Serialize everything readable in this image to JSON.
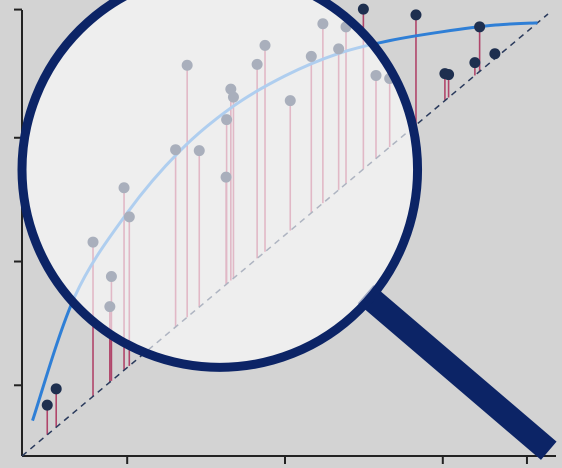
{
  "chart_data": {
    "type": "scatter",
    "title": "",
    "xlabel": "",
    "ylabel": "",
    "xlim": [
      0,
      100
    ],
    "ylim": [
      0,
      100
    ],
    "xticks": [
      20,
      50,
      80,
      96
    ],
    "yticks": [
      16,
      44,
      72,
      101
    ],
    "grid": false,
    "legend": "none",
    "colors": {
      "background": "#d3d3d3",
      "axis": "#222222",
      "point": "#1e2f4f",
      "residual": "#b0456a",
      "fit_curve": "#2f7fd6",
      "diagonal": "#2a3a5c",
      "magnifier": "#0c2466",
      "lens": "#ffffff"
    },
    "reference_line": {
      "style": "dashed",
      "x": [
        0,
        100
      ],
      "y": [
        0,
        100
      ]
    },
    "fit_curve": {
      "x": [
        2,
        10,
        20,
        30,
        40,
        50,
        60,
        70,
        80,
        90,
        98
      ],
      "y": [
        8,
        36,
        55,
        69,
        79,
        86,
        91,
        94,
        96,
        97.5,
        98
      ]
    },
    "points": [
      {
        "x": 4.8,
        "y": 11.5
      },
      {
        "x": 6.5,
        "y": 15.2
      },
      {
        "x": 13.5,
        "y": 48.4
      },
      {
        "x": 16.7,
        "y": 33.8
      },
      {
        "x": 17,
        "y": 40.6
      },
      {
        "x": 19.4,
        "y": 60.7
      },
      {
        "x": 20.4,
        "y": 54.1
      },
      {
        "x": 29.2,
        "y": 69.3
      },
      {
        "x": 31.4,
        "y": 88.4
      },
      {
        "x": 33.7,
        "y": 69.1
      },
      {
        "x": 38.8,
        "y": 63.1
      },
      {
        "x": 38.9,
        "y": 76.1
      },
      {
        "x": 39.7,
        "y": 83
      },
      {
        "x": 40.2,
        "y": 81.2
      },
      {
        "x": 44.7,
        "y": 88.6
      },
      {
        "x": 46.2,
        "y": 92.9
      },
      {
        "x": 51,
        "y": 80.4
      },
      {
        "x": 55,
        "y": 90.4
      },
      {
        "x": 57.2,
        "y": 97.8
      },
      {
        "x": 60.2,
        "y": 92.1
      },
      {
        "x": 61.6,
        "y": 97.1
      },
      {
        "x": 64.9,
        "y": 101.1
      },
      {
        "x": 67.3,
        "y": 86.1
      },
      {
        "x": 69.9,
        "y": 85.4
      },
      {
        "x": 74.9,
        "y": 99.8
      },
      {
        "x": 80.4,
        "y": 86.5
      },
      {
        "x": 81.1,
        "y": 86.3
      },
      {
        "x": 86.1,
        "y": 89
      },
      {
        "x": 87,
        "y": 97.1
      },
      {
        "x": 89.9,
        "y": 91
      }
    ],
    "magnifier": {
      "center_x": 37.6,
      "center_y": 64.8,
      "radius_x_units": 37.6
    }
  }
}
